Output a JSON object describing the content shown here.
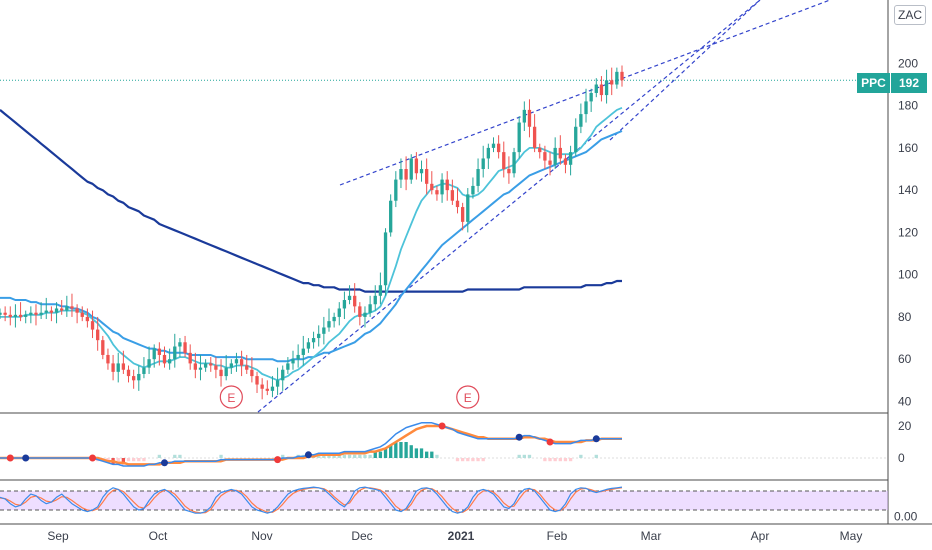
{
  "header": {
    "scale_label": "ZAC",
    "symbol_badge": "PPC",
    "last_price_label": "192"
  },
  "colors": {
    "up": "#26a69a",
    "down": "#ef5350",
    "ma_fast": "#4dc3d9",
    "ma_mid": "#3a9ee6",
    "ma_slow": "#1a3a9a",
    "trendline": "#3344cc",
    "last_price_line": "#22a59a",
    "macd_line": "#3b8beb",
    "macd_signal": "#ff8a3d",
    "stoch_k": "#3b8beb",
    "stoch_d": "#ff7b4a",
    "stoch_band": "#d9b6ff",
    "earnings": "#e04b5a"
  },
  "chart_data": [
    {
      "type": "candlestick",
      "panel": "price",
      "x_labels": [
        "Sep",
        "Oct",
        "Nov",
        "Dec",
        "2021",
        "Feb",
        "Mar",
        "Apr",
        "May"
      ],
      "y_ticks": [
        40,
        60,
        80,
        100,
        120,
        140,
        160,
        180,
        200
      ],
      "ylim": [
        35,
        230
      ],
      "last_price": 192,
      "close_series": [
        82,
        81,
        80,
        81,
        80,
        81,
        82,
        81,
        82,
        83,
        82,
        84,
        83,
        85,
        84,
        82,
        80,
        78,
        74,
        69,
        62,
        58,
        54,
        58,
        55,
        52,
        50,
        53,
        56,
        60,
        65,
        62,
        58,
        60,
        66,
        68,
        63,
        58,
        55,
        56,
        58,
        57,
        55,
        52,
        56,
        58,
        60,
        57,
        55,
        52,
        48,
        46,
        45,
        47,
        50,
        55,
        58,
        60,
        62,
        65,
        68,
        70,
        72,
        75,
        78,
        80,
        84,
        88,
        90,
        85,
        80,
        82,
        86,
        90,
        95,
        120,
        135,
        145,
        150,
        145,
        155,
        148,
        150,
        143,
        140,
        138,
        145,
        140,
        135,
        132,
        125,
        138,
        142,
        150,
        155,
        160,
        162,
        158,
        150,
        148,
        158,
        172,
        178,
        170,
        160,
        158,
        154,
        152,
        160,
        155,
        152,
        158,
        170,
        176,
        182,
        186,
        190,
        185,
        192,
        190,
        196,
        192
      ],
      "ma_fast": [
        80,
        80,
        80,
        80,
        80,
        81,
        81,
        81,
        81,
        82,
        82,
        82,
        83,
        83,
        83,
        83,
        82,
        81,
        79,
        77,
        74,
        71,
        67,
        64,
        62,
        60,
        58,
        57,
        56,
        57,
        58,
        59,
        59,
        59,
        60,
        61,
        61,
        60,
        59,
        58,
        58,
        58,
        57,
        57,
        56,
        56,
        57,
        57,
        57,
        56,
        55,
        53,
        52,
        51,
        50,
        51,
        52,
        54,
        55,
        57,
        59,
        61,
        63,
        65,
        68,
        70,
        72,
        75,
        78,
        80,
        81,
        81,
        82,
        83,
        85,
        90,
        97,
        104,
        112,
        118,
        124,
        130,
        135,
        138,
        141,
        142,
        143,
        143,
        142,
        141,
        138,
        137,
        137,
        138,
        140,
        143,
        146,
        149,
        150,
        151,
        152,
        155,
        158,
        160,
        160,
        160,
        159,
        158,
        157,
        157,
        157,
        157,
        158,
        160,
        163,
        166,
        170,
        172,
        174,
        176,
        178,
        179
      ],
      "ma_mid": [
        89,
        89,
        89,
        88,
        88,
        88,
        87,
        87,
        86,
        86,
        86,
        86,
        85,
        85,
        84,
        84,
        83,
        82,
        80,
        79,
        77,
        75,
        73,
        72,
        70,
        69,
        68,
        67,
        66,
        65,
        65,
        64,
        64,
        63,
        63,
        63,
        63,
        62,
        62,
        62,
        62,
        62,
        61,
        61,
        61,
        61,
        61,
        61,
        60,
        60,
        60,
        60,
        60,
        60,
        59,
        59,
        59,
        60,
        60,
        60,
        61,
        61,
        62,
        63,
        63,
        64,
        65,
        66,
        67,
        68,
        70,
        72,
        73,
        75,
        77,
        80,
        83,
        86,
        90,
        93,
        96,
        99,
        102,
        105,
        108,
        111,
        114,
        116,
        118,
        120,
        122,
        124,
        126,
        128,
        130,
        132,
        134,
        136,
        138,
        139,
        141,
        143,
        145,
        147,
        148,
        149,
        150,
        151,
        152,
        153,
        154,
        155,
        156,
        157,
        158,
        160,
        162,
        164,
        165,
        166,
        167,
        168
      ],
      "ma_slow": [
        178,
        176,
        174,
        172,
        170,
        168,
        166,
        164,
        162,
        160,
        158,
        156,
        154,
        152,
        150,
        148,
        146,
        144,
        143,
        141,
        140,
        138,
        137,
        135,
        134,
        132,
        131,
        130,
        128,
        127,
        126,
        124,
        123,
        122,
        121,
        120,
        119,
        118,
        117,
        116,
        115,
        114,
        113,
        112,
        111,
        110,
        109,
        108,
        107,
        106,
        105,
        104,
        103,
        102,
        101,
        100,
        99,
        98,
        97,
        96,
        96,
        95,
        95,
        94,
        94,
        94,
        93,
        93,
        93,
        93,
        93,
        92,
        92,
        92,
        92,
        92,
        92,
        92,
        92,
        92,
        92,
        92,
        92,
        92,
        92,
        92,
        92,
        92,
        92,
        92,
        92,
        93,
        93,
        93,
        93,
        93,
        93,
        93,
        93,
        93,
        93,
        93,
        94,
        94,
        94,
        94,
        94,
        94,
        94,
        94,
        94,
        94,
        94,
        94,
        95,
        95,
        95,
        95,
        96,
        96,
        97,
        97
      ],
      "earnings_markers": [
        {
          "label": "E",
          "index": 45
        },
        {
          "label": "E",
          "index": 91
        }
      ]
    },
    {
      "type": "histogram+line",
      "panel": "macd",
      "y_ticks": [
        20,
        0
      ],
      "ylim": [
        -10,
        25
      ],
      "macd_line": [
        0,
        0,
        0,
        0,
        0,
        0,
        0,
        0,
        0,
        0,
        0,
        0,
        0,
        0,
        0,
        0,
        0,
        0,
        0,
        -1,
        -2,
        -3,
        -4,
        -4,
        -5,
        -5,
        -5,
        -5,
        -5,
        -4,
        -4,
        -3,
        -3,
        -3,
        -2,
        -2,
        -2,
        -2,
        -2,
        -2,
        -2,
        -2,
        -2,
        -1,
        -1,
        -1,
        -1,
        -1,
        -1,
        -1,
        -1,
        -1,
        -1,
        -1,
        -1,
        0,
        0,
        0,
        1,
        1,
        2,
        2,
        3,
        3,
        3,
        3,
        3,
        4,
        4,
        4,
        4,
        4,
        5,
        6,
        7,
        9,
        12,
        15,
        17,
        19,
        20,
        21,
        22,
        22,
        22,
        21,
        20,
        19,
        18,
        16,
        15,
        14,
        13,
        12,
        12,
        12,
        12,
        12,
        12,
        12,
        12,
        13,
        14,
        14,
        13,
        12,
        11,
        10,
        9,
        9,
        9,
        9,
        10,
        11,
        11,
        11,
        12,
        12,
        12,
        12,
        12,
        12
      ],
      "signal_line": [
        0,
        0,
        0,
        0,
        0,
        0,
        0,
        0,
        0,
        0,
        0,
        0,
        0,
        0,
        0,
        0,
        0,
        0,
        0,
        0,
        -1,
        -2,
        -2,
        -3,
        -3,
        -4,
        -4,
        -4,
        -4,
        -4,
        -4,
        -4,
        -3,
        -3,
        -3,
        -3,
        -2,
        -2,
        -2,
        -2,
        -2,
        -2,
        -2,
        -2,
        -1,
        -1,
        -1,
        -1,
        -1,
        -1,
        -1,
        -1,
        -1,
        -1,
        -1,
        -1,
        0,
        0,
        0,
        0,
        1,
        1,
        2,
        2,
        2,
        2,
        2,
        3,
        3,
        3,
        3,
        3,
        4,
        4,
        5,
        6,
        8,
        10,
        12,
        14,
        16,
        18,
        19,
        20,
        20,
        20,
        20,
        19,
        18,
        17,
        16,
        15,
        14,
        13,
        13,
        12,
        12,
        12,
        12,
        12,
        12,
        12,
        13,
        13,
        13,
        12,
        12,
        11,
        10,
        10,
        10,
        10,
        10,
        10,
        11,
        11,
        11,
        12,
        12,
        12,
        12,
        12
      ]
    },
    {
      "type": "line",
      "panel": "stochastic",
      "y_ticks": [
        0.0
      ],
      "y_tick_label": "0.00",
      "band": [
        20,
        80
      ],
      "ylim": [
        -5,
        105
      ],
      "k_line": [
        60,
        55,
        40,
        30,
        35,
        55,
        70,
        65,
        50,
        40,
        45,
        60,
        70,
        55,
        40,
        30,
        20,
        15,
        20,
        30,
        60,
        80,
        90,
        85,
        70,
        50,
        30,
        20,
        25,
        50,
        70,
        80,
        85,
        75,
        60,
        40,
        20,
        15,
        10,
        10,
        15,
        30,
        60,
        75,
        80,
        85,
        80,
        70,
        50,
        30,
        20,
        15,
        10,
        15,
        30,
        50,
        70,
        80,
        85,
        88,
        90,
        92,
        90,
        85,
        70,
        55,
        40,
        30,
        50,
        80,
        90,
        92,
        88,
        85,
        80,
        60,
        40,
        20,
        15,
        25,
        50,
        80,
        88,
        90,
        85,
        70,
        50,
        30,
        15,
        10,
        15,
        30,
        60,
        80,
        85,
        80,
        70,
        50,
        30,
        25,
        40,
        70,
        85,
        88,
        80,
        60,
        40,
        20,
        15,
        20,
        40,
        70,
        85,
        90,
        88,
        80,
        75,
        80,
        85,
        88,
        90,
        92
      ],
      "d_line": [
        58,
        56,
        48,
        38,
        35,
        45,
        60,
        64,
        58,
        48,
        45,
        52,
        62,
        60,
        50,
        38,
        27,
        20,
        18,
        24,
        45,
        68,
        82,
        85,
        78,
        62,
        45,
        30,
        26,
        38,
        58,
        74,
        82,
        80,
        70,
        52,
        32,
        20,
        14,
        11,
        12,
        22,
        45,
        65,
        76,
        82,
        82,
        76,
        62,
        42,
        28,
        20,
        14,
        13,
        22,
        38,
        58,
        72,
        80,
        85,
        88,
        90,
        90,
        87,
        78,
        62,
        48,
        36,
        42,
        65,
        82,
        90,
        90,
        87,
        83,
        72,
        52,
        32,
        20,
        20,
        38,
        65,
        82,
        88,
        87,
        78,
        62,
        42,
        25,
        14,
        13,
        22,
        45,
        68,
        80,
        82,
        76,
        62,
        42,
        30,
        32,
        55,
        76,
        86,
        84,
        70,
        50,
        32,
        20,
        18,
        30,
        55,
        76,
        86,
        88,
        84,
        78,
        78,
        82,
        85,
        88,
        90
      ]
    }
  ],
  "x_axis": {
    "labels": [
      "Sep",
      "Oct",
      "Nov",
      "Dec",
      "2021",
      "Feb",
      "Mar",
      "Apr",
      "May"
    ]
  }
}
